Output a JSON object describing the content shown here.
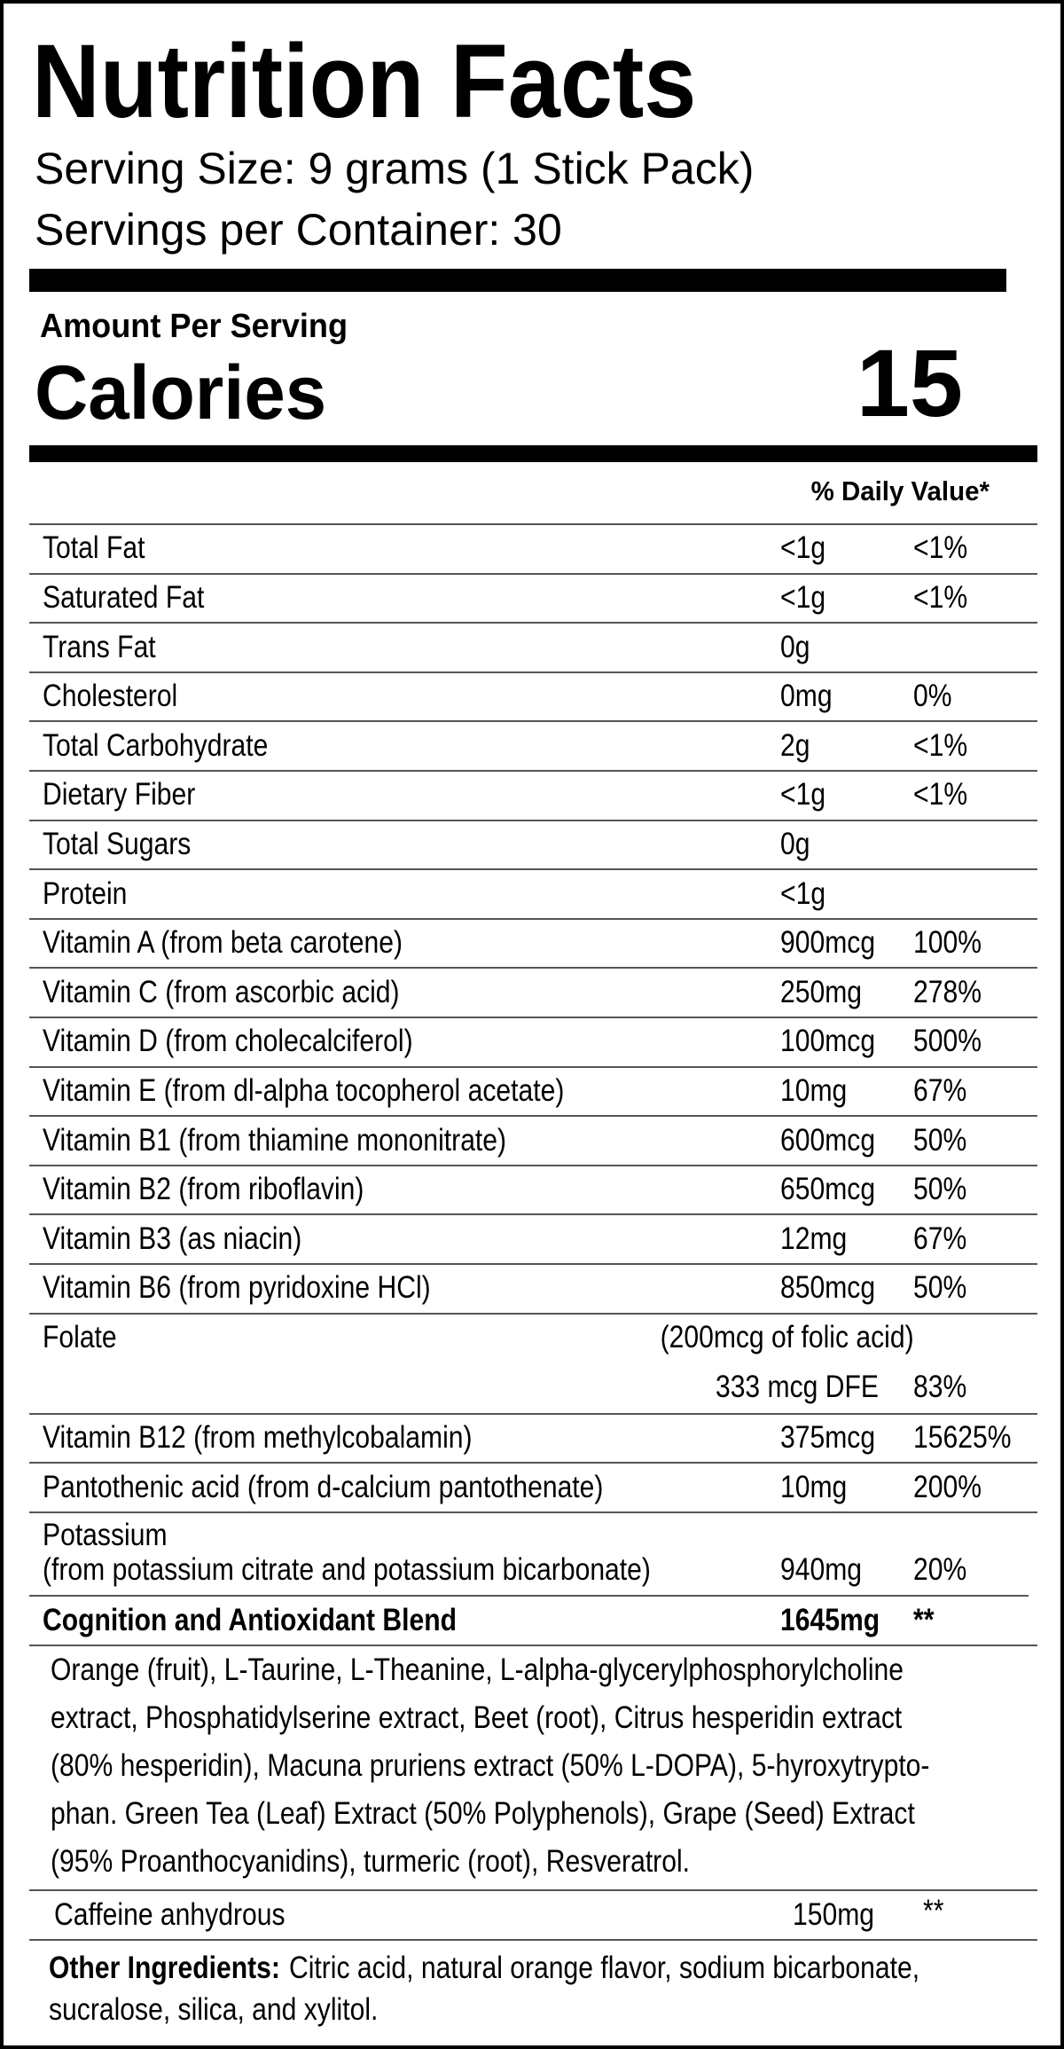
{
  "header": {
    "title": "Nutrition Facts",
    "serving_size": "Serving Size: 9 grams (1 Stick Pack)",
    "servings_per_container": "Servings per Container: 30",
    "amount_per_serving": "Amount Per Serving",
    "calories_label": "Calories",
    "calories_value": "15",
    "daily_value_header": "% Daily Value*"
  },
  "rows": [
    {
      "name": "Total Fat",
      "amount": "<1g",
      "dv": "<1%"
    },
    {
      "name": "Saturated Fat",
      "amount": "<1g",
      "dv": "<1%"
    },
    {
      "name": "Trans Fat",
      "amount": "0g"
    },
    {
      "name": "Cholesterol",
      "amount": "0mg",
      "dv": "0%"
    },
    {
      "name": "Total Carbohydrate",
      "amount": "2g",
      "dv": "<1%"
    },
    {
      "name": "Dietary Fiber",
      "amount": "<1g",
      "dv": "<1%"
    },
    {
      "name": "Total Sugars",
      "amount": "0g"
    },
    {
      "name": "Protein",
      "amount": "<1g"
    },
    {
      "name": "Vitamin A (from beta carotene)",
      "amount": "900mcg",
      "dv": "100%"
    },
    {
      "name": "Vitamin C (from ascorbic acid)",
      "amount": "250mg",
      "dv": "278%"
    },
    {
      "name": "Vitamin D (from cholecalciferol)",
      "amount": "100mcg",
      "dv": "500%"
    },
    {
      "name": "Vitamin E (from dl-alpha tocopherol acetate)",
      "amount": "10mg",
      "dv": "67%"
    },
    {
      "name": "Vitamin B1 (from thiamine mononitrate)",
      "amount": "600mcg",
      "dv": "50%"
    },
    {
      "name": "Vitamin B2 (from riboflavin)",
      "amount": "650mcg",
      "dv": "50%"
    },
    {
      "name": "Vitamin B3 (as niacin)",
      "amount": "12mg",
      "dv": "67%"
    },
    {
      "name": "Vitamin B6 (from pyridoxine HCl)",
      "amount": "850mcg",
      "dv": "50%"
    },
    {
      "name": "Folate",
      "note": "(200mcg of folic acid)",
      "amount": "333 mcg DFE",
      "dv": "83%"
    },
    {
      "name": "Vitamin B12 (from methylcobalamin)",
      "amount": "375mcg",
      "dv": "15625%"
    },
    {
      "name": "Pantothenic acid (from d-calcium pantothenate)",
      "amount": "10mg",
      "dv": "200%"
    },
    {
      "name": "Potassium",
      "sub": "(from potassium citrate and potassium bicarbonate)",
      "amount": "940mg",
      "dv": "20%"
    }
  ],
  "blend": {
    "name": "Cognition and Antioxidant Blend",
    "amount": "1645mg",
    "dv": "**",
    "ingredients": [
      "Orange (fruit), L-Taurine, L-Theanine, L-alpha-glycerylphosphorylcholine",
      "extract, Phosphatidylserine extract, Beet (root), Citrus hesperidin extract",
      "(80% hesperidin), Macuna pruriens extract (50% L-DOPA), 5-hyroxytrypto-",
      "phan. Green Tea (Leaf) Extract (50% Polyphenols), Grape (Seed) Extract",
      "(95% Proanthocyanidins), turmeric (root), Resveratrol."
    ]
  },
  "caffeine": {
    "name": "Caffeine anhydrous",
    "amount": "150mg",
    "dv": "**"
  },
  "other_ingredients": {
    "label": "Other Ingredients:",
    "lines": [
      "Citric acid, natural orange flavor, sodium bicarbonate,",
      "sucralose, silica, and xylitol."
    ]
  }
}
